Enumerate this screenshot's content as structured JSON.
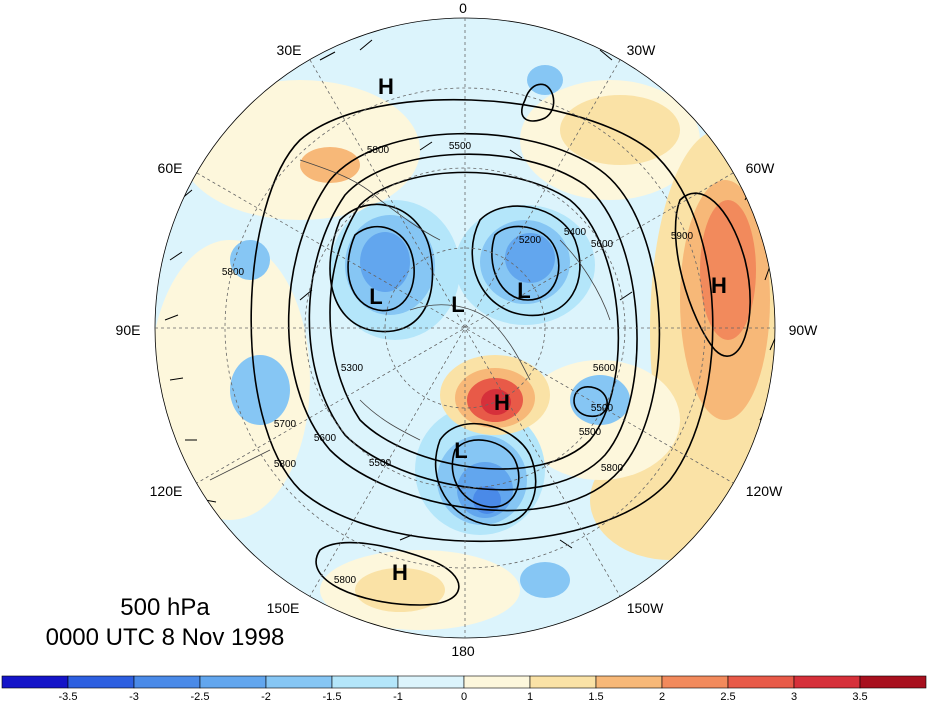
{
  "map": {
    "pressure_level": "500 hPa",
    "valid_time": "0000 UTC 8 Nov 1998",
    "projection": "polar stereographic, north pole",
    "longitude_labels": {
      "lon_0": "0",
      "lon_30w": "30W",
      "lon_60w": "60W",
      "lon_90w": "90W",
      "lon_120w": "120W",
      "lon_150w": "150W",
      "lon_180": "180",
      "lon_150e": "150E",
      "lon_120e": "120E",
      "lon_90e": "90E",
      "lon_60e": "60E",
      "lon_30e": "30E"
    },
    "pressure_centers": [
      {
        "type": "H",
        "color": "#000000"
      },
      {
        "type": "L",
        "color": "#000000"
      },
      {
        "type": "L",
        "color": "#000000"
      },
      {
        "type": "L",
        "color": "#000000"
      },
      {
        "type": "H",
        "color": "#000000"
      },
      {
        "type": "H",
        "color": "#000000"
      },
      {
        "type": "L",
        "color": "#000000"
      },
      {
        "type": "H",
        "color": "#000000"
      }
    ],
    "contour_labels": [
      "5800",
      "5500",
      "5800",
      "5200",
      "5400",
      "5600",
      "5900",
      "5600",
      "5500",
      "5800",
      "5500",
      "5600",
      "5700",
      "5800",
      "5800",
      "5300",
      "5500"
    ],
    "anomaly_colorbar": {
      "levels": [
        "-3.5",
        "-3",
        "-2.5",
        "-2",
        "-1.5",
        "-1",
        "0",
        "1",
        "1.5",
        "2",
        "2.5",
        "3",
        "3.5"
      ],
      "colors": [
        "#1414c8",
        "#2d5fe0",
        "#4a8ae8",
        "#62a6ee",
        "#86c6f4",
        "#b4e6fa",
        "#dcf4fc",
        "#fdf7dc",
        "#fae2a6",
        "#f7b878",
        "#f28a5c",
        "#e85a48",
        "#d6303a",
        "#a8101e"
      ]
    }
  }
}
